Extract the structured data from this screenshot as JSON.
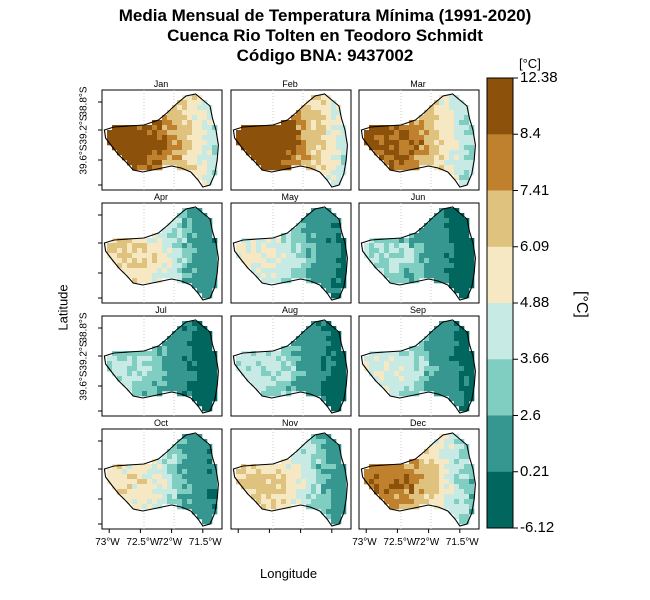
{
  "figure": {
    "title_line1": "Media Mensual de Temperatura Mínima (1991-2020)",
    "title_line2": "Cuenca Rio Tolten en Teodoro Schmidt",
    "title_line3": "Código BNA: 9437002",
    "xlabel": "Longitude",
    "ylabel": "Latitude",
    "colorbar_unit_top": "[°C]",
    "colorbar_unit_side": "[°C]"
  },
  "chart_data": {
    "type": "heatmap",
    "panels": [
      "Jan",
      "Feb",
      "Mar",
      "Apr",
      "May",
      "Jun",
      "Jul",
      "Aug",
      "Sep",
      "Oct",
      "Nov",
      "Dec"
    ],
    "x_ticks": [
      "73°W",
      "72.5°W",
      "72°W",
      "71.5°W"
    ],
    "y_ticks": [
      "38.8°S",
      "39.2°S",
      "39.6°S"
    ],
    "colorbar_breaks": [
      "12.38",
      "8.4",
      "7.41",
      "6.09",
      "4.88",
      "3.66",
      "2.6",
      "0.21",
      "-6.12"
    ],
    "colorbar_colors": [
      "#8c510a",
      "#bf812d",
      "#dfc27d",
      "#f6e8c3",
      "#c7eae5",
      "#80cdc1",
      "#35978f",
      "#01665e"
    ],
    "monthly_level": [
      7.2,
      7.4,
      6.6,
      3.9,
      2.9,
      1.5,
      1.5,
      2.0,
      2.4,
      3.4,
      4.4,
      6.1
    ]
  }
}
